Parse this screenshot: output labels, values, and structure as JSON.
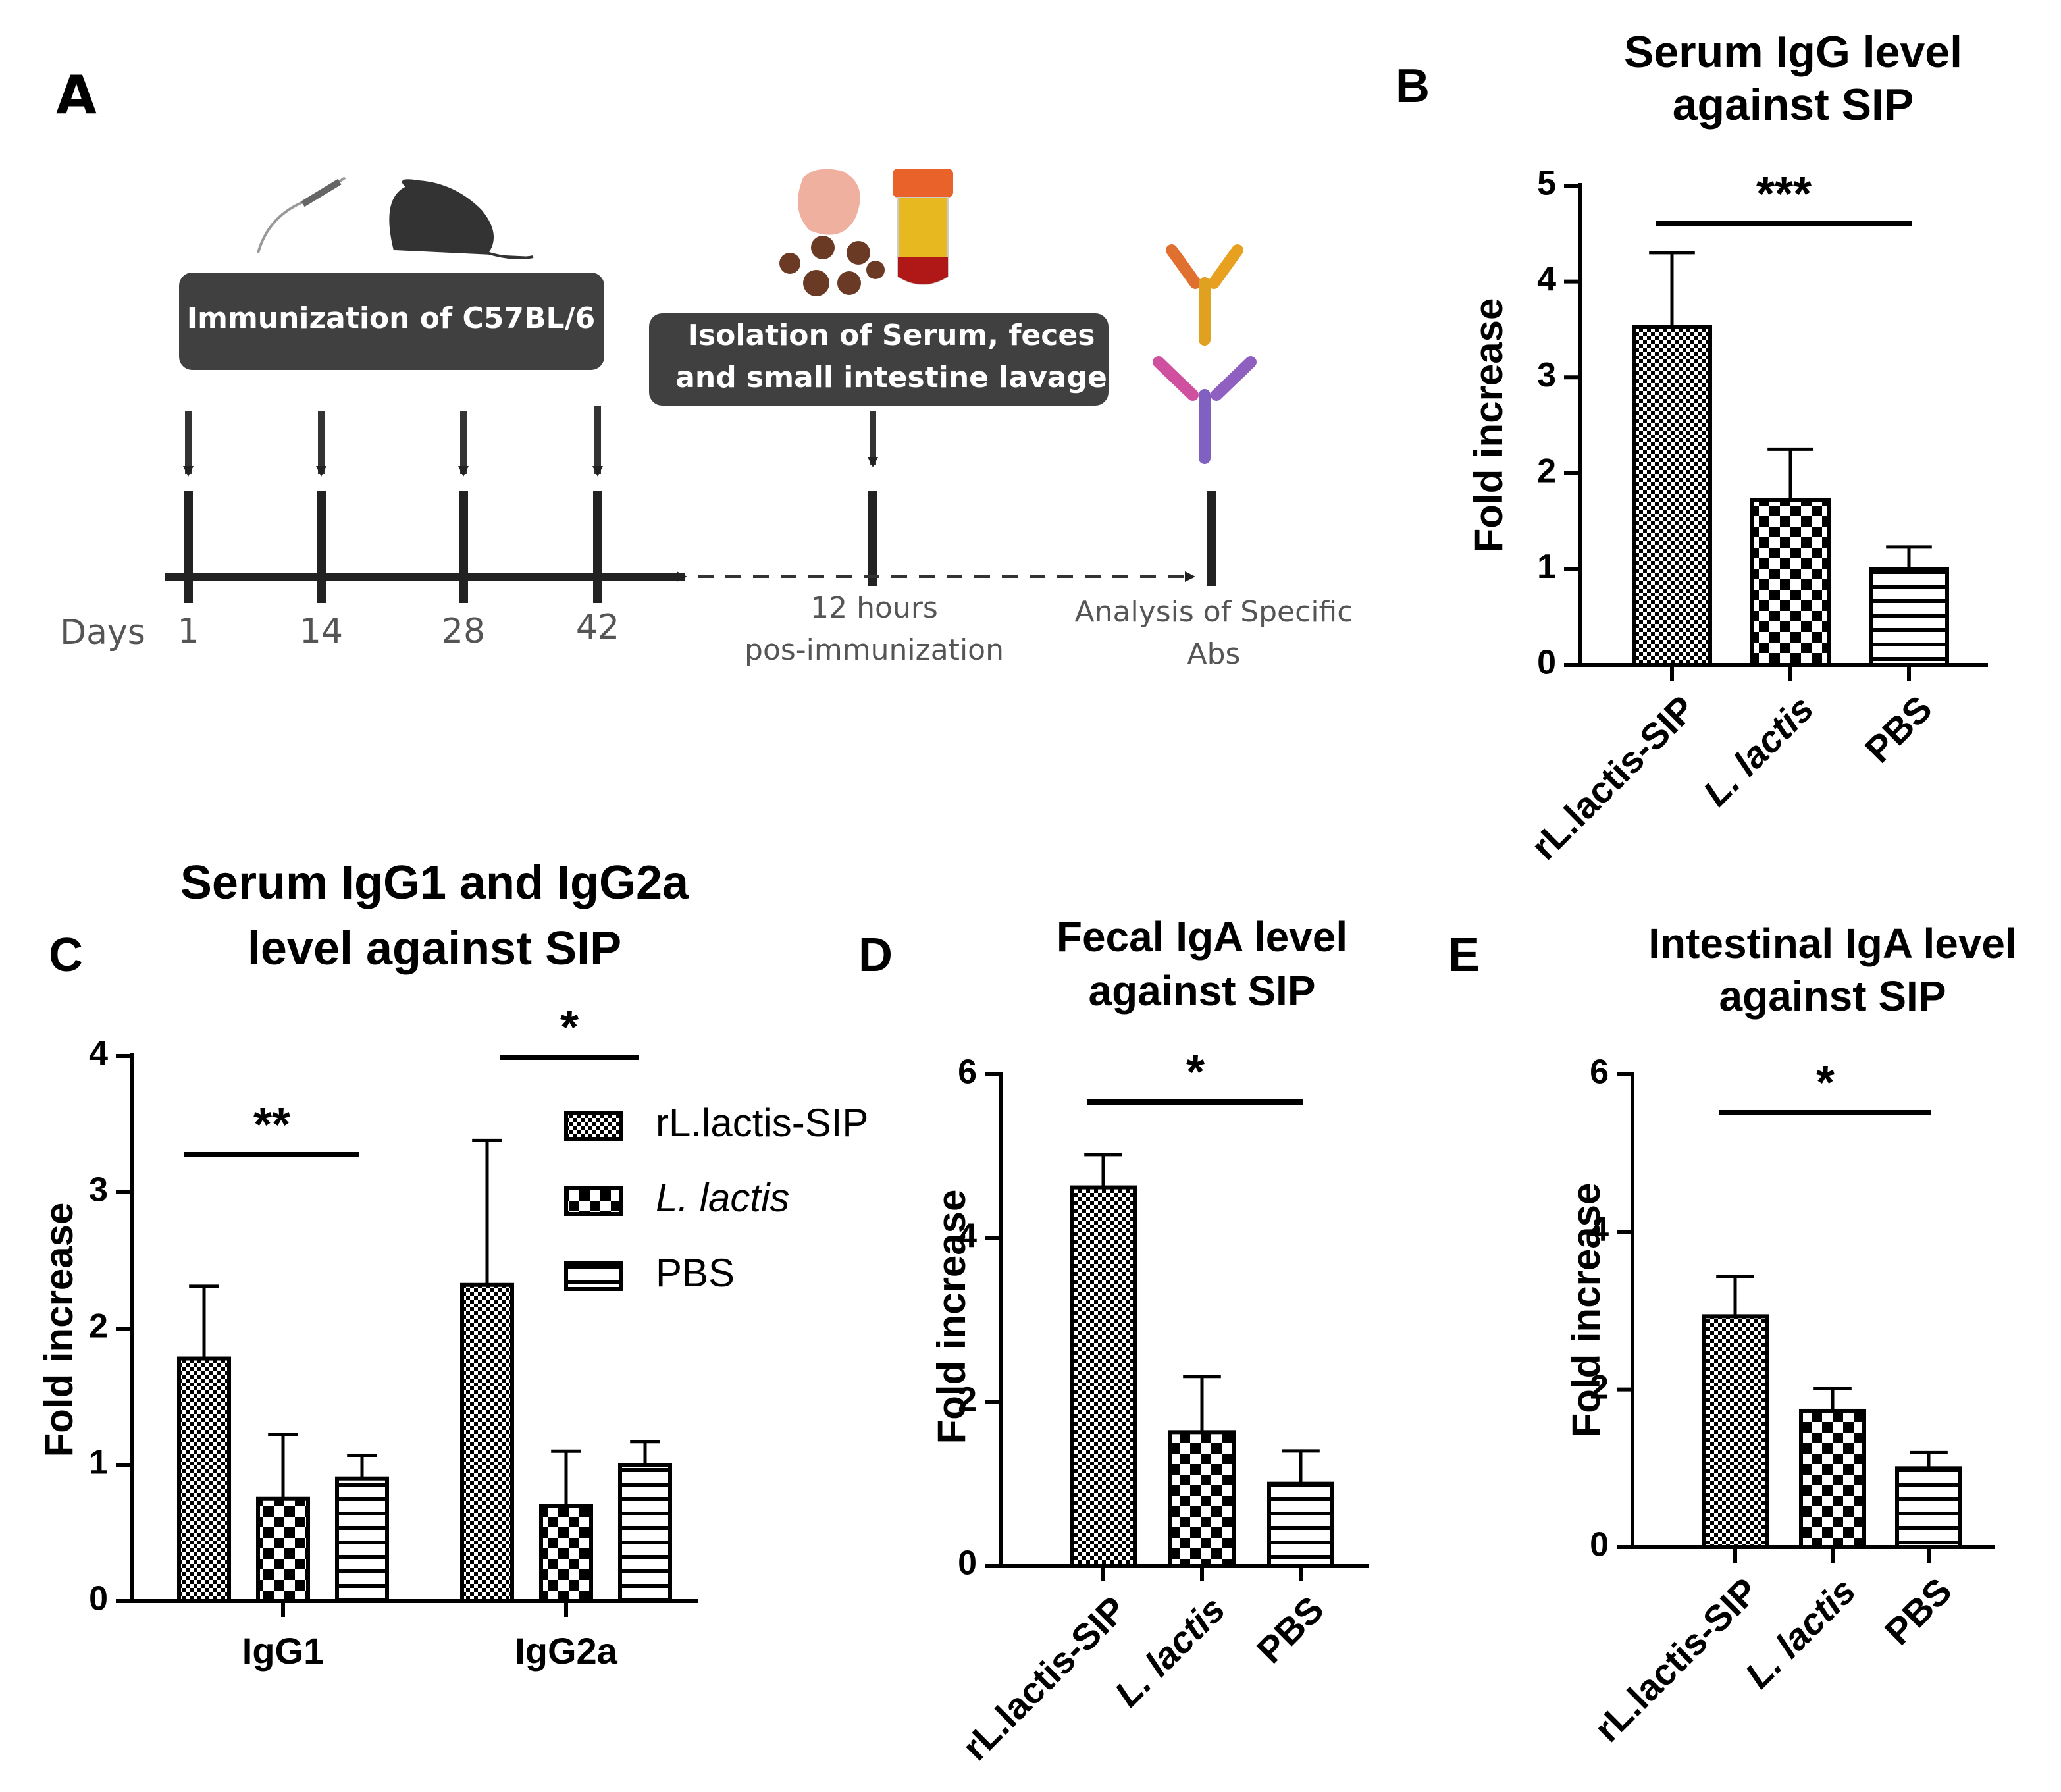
{
  "diagram": {
    "panel": "A",
    "immunization": "Immunization of C57BL/6",
    "isolation": [
      "Isolation of Serum, feces",
      "and small intestine lavage"
    ],
    "days_label": "Days",
    "days": [
      "1",
      "14",
      "28",
      "42"
    ],
    "collection": [
      "12 hours",
      "pos-immunization"
    ],
    "analysis": [
      "Analysis of Specific",
      "Abs"
    ]
  },
  "chart_data": [
    {
      "type": "bar",
      "panel": "B",
      "title": [
        "Serum IgG level",
        "against SIP"
      ],
      "y_label": "Fold increase",
      "categories": [
        "rL.lactis-SIP",
        "L. lactis",
        "PBS"
      ],
      "italic_category": 1,
      "values": [
        3.53,
        1.72,
        1.0
      ],
      "errors": [
        0.77,
        0.53,
        0.23
      ],
      "patterns": [
        "fine-check",
        "coarse-check",
        "stripes"
      ],
      "color": "#000000",
      "ylim": [
        0,
        5
      ],
      "yticks": [
        0,
        1,
        2,
        3,
        4,
        5
      ],
      "significance": [
        {
          "label": "***",
          "from": 0,
          "to": 2
        }
      ]
    },
    {
      "type": "bar",
      "panel": "C",
      "title": [
        "Serum IgG1 and IgG2a",
        "level against SIP"
      ],
      "y_label": "Fold increase",
      "categories": [
        "IgG1",
        "IgG2a"
      ],
      "italic_series": 1,
      "color": "#000000",
      "series": [
        {
          "name": "rL.lactis-SIP",
          "pattern": "fine-check",
          "values": [
            1.78,
            2.32
          ],
          "errors": [
            0.53,
            1.06
          ]
        },
        {
          "name": "L. lactis",
          "pattern": "coarse-check",
          "values": [
            0.75,
            0.7
          ],
          "errors": [
            0.47,
            0.4
          ]
        },
        {
          "name": "PBS",
          "pattern": "stripes",
          "values": [
            0.9,
            1.0
          ],
          "errors": [
            0.17,
            0.17
          ]
        }
      ],
      "ylim": [
        0,
        4
      ],
      "yticks": [
        0,
        1,
        2,
        3,
        4
      ],
      "legend": "upper-right",
      "significance": [
        {
          "label": "**",
          "from": 0,
          "to": 0
        },
        {
          "label": "*",
          "from": 1,
          "to": 1
        }
      ]
    },
    {
      "type": "bar",
      "panel": "D",
      "title": [
        "Fecal IgA level",
        "against SIP"
      ],
      "y_label": "Fold increase",
      "categories": [
        "rL.lactis-SIP",
        "L. lactis",
        "PBS"
      ],
      "italic_category": 1,
      "values": [
        4.62,
        1.63,
        1.0
      ],
      "errors": [
        0.4,
        0.68,
        0.4
      ],
      "patterns": [
        "fine-check",
        "coarse-check",
        "stripes"
      ],
      "color": "#000000",
      "ylim": [
        0,
        6
      ],
      "yticks": [
        0,
        2,
        4,
        6
      ],
      "significance": [
        {
          "label": "*",
          "from": 0,
          "to": 2
        }
      ]
    },
    {
      "type": "bar",
      "panel": "E",
      "title": [
        "Intestinal IgA level",
        "against SIP"
      ],
      "y_label": "Fold increase",
      "categories": [
        "rL.lactis-SIP",
        "L. lactis",
        "PBS"
      ],
      "italic_category": 1,
      "values": [
        2.93,
        1.73,
        1.0
      ],
      "errors": [
        0.5,
        0.28,
        0.2
      ],
      "patterns": [
        "fine-check",
        "coarse-check",
        "stripes"
      ],
      "color": "#000000",
      "ylim": [
        0,
        6
      ],
      "yticks": [
        0,
        2,
        4,
        6
      ],
      "significance": [
        {
          "label": "*",
          "from": 0,
          "to": 2
        }
      ]
    }
  ]
}
